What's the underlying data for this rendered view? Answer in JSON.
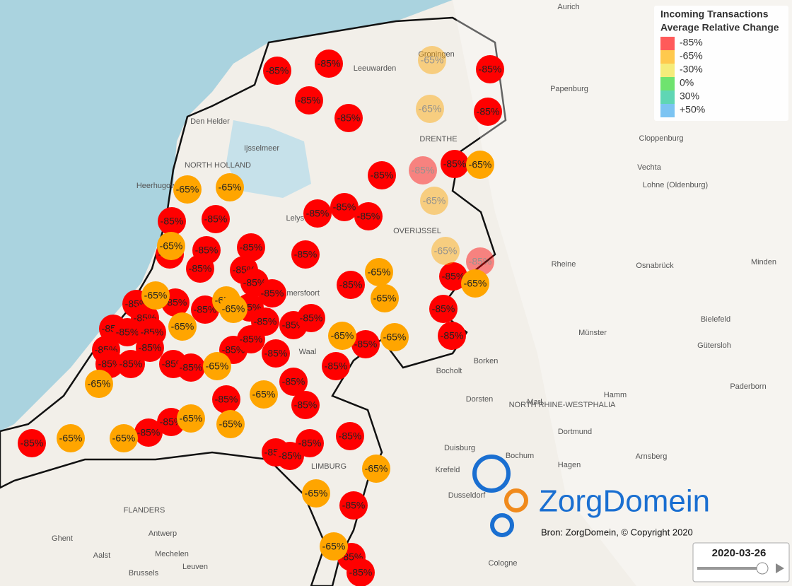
{
  "legend": {
    "title_lines": [
      "Incoming Transactions",
      "Average Relative Change"
    ],
    "items": [
      {
        "label": "-85%",
        "color": "#ff5a5a"
      },
      {
        "label": "-65%",
        "color": "#ffc94d"
      },
      {
        "label": "-30%",
        "color": "#f5ec7a"
      },
      {
        "label": "0%",
        "color": "#6fe36f"
      },
      {
        "label": "30%",
        "color": "#5fd6b4"
      },
      {
        "label": "+50%",
        "color": "#7cc4f2"
      }
    ]
  },
  "markers": [
    "-85%",
    "-85%",
    "-85%",
    "-85%",
    "-85%",
    "-85%",
    "-85%",
    "-85%",
    "-85%",
    "-85%",
    "-85%",
    "-85%",
    "-85%",
    "-85%",
    "-85%",
    "-85%",
    "-85%",
    "-85%",
    "-85%",
    "-85%",
    "-85%",
    "-85%",
    "-85%",
    "-85%",
    "-85%",
    "-85%",
    "-85%",
    "-85%",
    "-85%",
    "-85%",
    "-85%",
    "-85%",
    "-85%",
    "-85%",
    "-85%",
    "-85%",
    "-85%",
    "-85%",
    "-85%",
    "-85%",
    "-85%",
    "-85%",
    "-85%",
    "-85%",
    "-85%",
    "-85%",
    "-85%",
    "-85%",
    "-85%",
    "-85%",
    "-85%",
    "-85%",
    "-85%",
    "-85%",
    "-85%",
    "-85%",
    "-85%",
    "-85%",
    "-85%",
    "-85%",
    "-85%",
    "-85%",
    "-65%",
    "-65%",
    "-65%",
    "-65%",
    "-65%",
    "-65%",
    "-65%",
    "-65%",
    "-65%",
    "-65%",
    "-65%",
    "-65%",
    "-65%",
    "-65%",
    "-65%",
    "-65%",
    "-65%",
    "-65%",
    "-65%",
    "-65%",
    "-65%",
    "-65%",
    "-65%",
    "-65%",
    "-65%",
    "-65%",
    "-65%"
  ],
  "places": [
    "Aurich",
    "Groningen",
    "Leeuwarden",
    "Papenburg",
    "Den Helder",
    "Ijsselmeer",
    "Heerhugowaard",
    "Lelystad",
    "Cloppenburg",
    "Vechta",
    "Lohne (Oldenburg)",
    "Rheine",
    "Osnabrück",
    "Minden",
    "Amersfoort",
    "Münster",
    "Bielefeld",
    "Gütersloh",
    "Borken",
    "Bocholt",
    "Dorsten",
    "Marl",
    "Hamm",
    "Paderborn",
    "Dortmund",
    "Bochum",
    "Duisburg",
    "Krefeld",
    "Hagen",
    "Arnsberg",
    "Dusseldorf",
    "Cologne",
    "Antwerp",
    "Mechelen",
    "Ghent",
    "Aalst",
    "Brussels",
    "Leuven",
    "NORTH RHINE-WESTPHALIA",
    "FLANDERS",
    "LIMBURG",
    "OVERIJSSEL",
    "DRENTHE",
    "NORTH HOLLAND",
    "Waal"
  ],
  "logo": {
    "name": "ZorgDomein",
    "source": "Bron: ZorgDomein, © Copyright 2020"
  },
  "timeline": {
    "date": "2020-03-26"
  }
}
